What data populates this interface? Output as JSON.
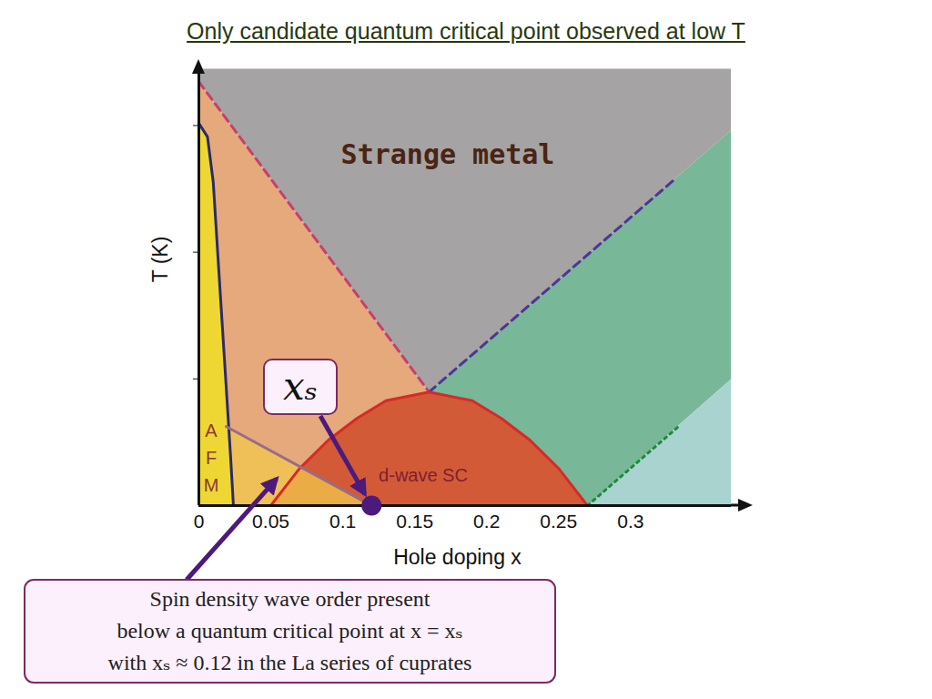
{
  "chart_data": {
    "type": "phase_diagram",
    "title": "Only candidate quantum critical point observed at low T",
    "x_label": "Hole doping x",
    "y_label": "T (K)",
    "xlim": [
      0,
      0.37
    ],
    "ylim": [
      0,
      1
    ],
    "xticks": [
      0,
      0.05,
      0.1,
      0.15,
      0.2,
      0.25,
      0.3
    ],
    "yticks": [
      0.29,
      0.58,
      0.87
    ],
    "tick_labels": "x",
    "regions": [
      {
        "label": "Strange metal",
        "color": "#a5a3a3",
        "points": [
          [
            0,
            1
          ],
          [
            0,
            0.97
          ],
          [
            0.16,
            0.26
          ],
          [
            0.37,
            0.86
          ],
          [
            0.37,
            1
          ]
        ]
      },
      {
        "color": "#e5a97c",
        "points": [
          [
            0,
            0.97
          ],
          [
            0.16,
            0.26
          ],
          [
            0.16,
            0
          ],
          [
            0,
            0
          ]
        ]
      },
      {
        "color": "#78b798",
        "points": [
          [
            0.16,
            0.26
          ],
          [
            0.37,
            0.86
          ],
          [
            0.37,
            0.29
          ],
          [
            0.27,
            0
          ],
          [
            0.16,
            0
          ]
        ]
      },
      {
        "color": "#a8d3cf",
        "points": [
          [
            0.27,
            0
          ],
          [
            0.37,
            0.29
          ],
          [
            0.37,
            0
          ]
        ]
      },
      {
        "label": "AFM",
        "color": "#efd733",
        "points": [
          [
            0,
            0.875
          ],
          [
            0.006,
            0.844
          ],
          [
            0.01,
            0.74
          ],
          [
            0.014,
            0.531
          ],
          [
            0.018,
            0.323
          ],
          [
            0.022,
            0.115
          ],
          [
            0.024,
            0
          ],
          [
            0,
            0
          ]
        ]
      },
      {
        "label": "d-wave SC",
        "color": "#d35a37",
        "points": [
          [
            0.05,
            0
          ],
          [
            0.07,
            0.085
          ],
          [
            0.09,
            0.15
          ],
          [
            0.11,
            0.2
          ],
          [
            0.13,
            0.24
          ],
          [
            0.16,
            0.26
          ],
          [
            0.19,
            0.24
          ],
          [
            0.21,
            0.2
          ],
          [
            0.23,
            0.15
          ],
          [
            0.25,
            0.085
          ],
          [
            0.27,
            0
          ]
        ]
      },
      {
        "color": "#f2c84b",
        "points": [
          [
            0.019,
            0.181
          ],
          [
            0.12,
            0
          ],
          [
            0.024,
            0
          ]
        ],
        "annotation": [
          "Spin density wave order present",
          "below a quantum critical point at x = xₛ",
          "with xₛ ≈ 0.12 in the La series of cuprates"
        ]
      }
    ],
    "boundaries": [
      {
        "color": "#c93f6b",
        "line_style": "dashed",
        "points": [
          [
            0,
            0.97
          ],
          [
            0.16,
            0.26
          ]
        ]
      },
      {
        "color": "#4e3596",
        "line_style": "dashed",
        "points": [
          [
            0.16,
            0.26
          ],
          [
            0.33,
            0.745
          ]
        ]
      },
      {
        "color": "#1d8a3c",
        "line_style": "dotted",
        "points": [
          [
            0.27,
            0
          ],
          [
            0.333,
            0.18
          ]
        ]
      },
      {
        "color": "#2d2a6b",
        "line_style": "solid",
        "points": [
          [
            0,
            0.875
          ],
          [
            0.006,
            0.844
          ],
          [
            0.01,
            0.74
          ],
          [
            0.014,
            0.531
          ],
          [
            0.018,
            0.323
          ],
          [
            0.022,
            0.115
          ],
          [
            0.024,
            0
          ]
        ]
      },
      {
        "color": "#d62a2a",
        "line_style": "solid",
        "points": [
          [
            0.05,
            0
          ],
          [
            0.07,
            0.085
          ],
          [
            0.09,
            0.15
          ],
          [
            0.11,
            0.2
          ],
          [
            0.13,
            0.24
          ],
          [
            0.16,
            0.26
          ],
          [
            0.19,
            0.24
          ],
          [
            0.21,
            0.2
          ],
          [
            0.23,
            0.15
          ],
          [
            0.25,
            0.085
          ],
          [
            0.27,
            0
          ]
        ]
      },
      {
        "color": "#9a6b85",
        "line_style": "solid",
        "points": [
          [
            0.019,
            0.181
          ],
          [
            0.12,
            0
          ]
        ]
      }
    ],
    "points": [
      {
        "label": "xₛ",
        "x": 0.12,
        "y": 0,
        "color": "#4b1a7c"
      }
    ]
  }
}
